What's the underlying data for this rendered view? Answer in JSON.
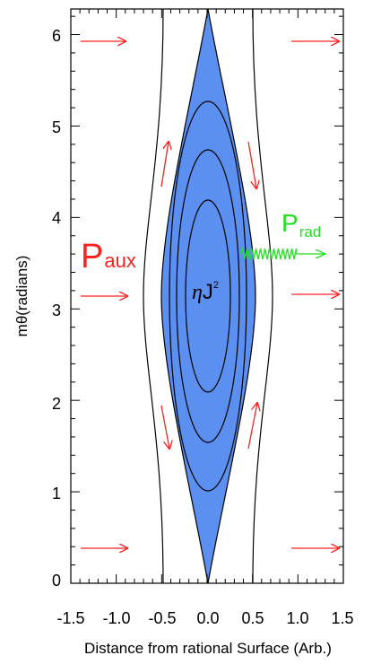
{
  "chart_data": {
    "type": "diagram",
    "xlabel": "Distance from rational Surface (Arb.)",
    "ylabel": "mθ(radians)",
    "xlim": [
      -1.5,
      1.5
    ],
    "ylim": [
      0,
      6.28
    ],
    "x_ticks": [
      "-1.5",
      "-1.0",
      "-0.5",
      "0.0",
      "0.5",
      "1.0",
      "1.5"
    ],
    "y_ticks": [
      "0",
      "1",
      "2",
      "3",
      "4",
      "5",
      "6"
    ],
    "island": {
      "center": [
        0.0,
        3.14
      ],
      "half_width": 0.5,
      "fill": "#5b8ff0"
    },
    "labels": {
      "p_aux": {
        "main": "P",
        "sub": "aux",
        "color": "#ff2020"
      },
      "p_rad": {
        "main": "P",
        "sub": "rad",
        "color": "#22e022"
      },
      "eta_j2": {
        "eta": "η",
        "j": "J",
        "sup": "2"
      }
    },
    "arrow_color": "#ff2020",
    "radiation_color": "#22e022"
  }
}
